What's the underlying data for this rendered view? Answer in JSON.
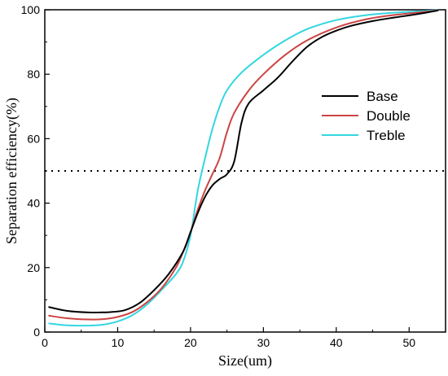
{
  "chart_data": {
    "type": "line",
    "xlabel": "Size(um)",
    "ylabel": "Separation efficiency(%)",
    "xlim": [
      0,
      55
    ],
    "ylim": [
      0,
      100
    ],
    "xticks": [
      0,
      10,
      20,
      30,
      40,
      50
    ],
    "yticks": [
      0,
      20,
      40,
      60,
      80,
      100
    ],
    "grid": false,
    "legend": "center-right",
    "series": [
      {
        "name": "Base",
        "color": "#000000",
        "points": [
          [
            0.5,
            7.8
          ],
          [
            3,
            6.6
          ],
          [
            6,
            6.1
          ],
          [
            9,
            6.2
          ],
          [
            11,
            6.8
          ],
          [
            13,
            9
          ],
          [
            15,
            13
          ],
          [
            17,
            18
          ],
          [
            19,
            25
          ],
          [
            20,
            31
          ],
          [
            21,
            37
          ],
          [
            22,
            42
          ],
          [
            23,
            45.5
          ],
          [
            24,
            47.5
          ],
          [
            25,
            49
          ],
          [
            26,
            53
          ],
          [
            27,
            65
          ],
          [
            28,
            71
          ],
          [
            30,
            75
          ],
          [
            32,
            79
          ],
          [
            34,
            84
          ],
          [
            36,
            88.5
          ],
          [
            38,
            91.5
          ],
          [
            40,
            93.5
          ],
          [
            42,
            95
          ],
          [
            45,
            96.5
          ],
          [
            48,
            97.6
          ],
          [
            51,
            98.6
          ],
          [
            54,
            99.8
          ]
        ]
      },
      {
        "name": "Double",
        "color": "#cc4444",
        "points": [
          [
            0.5,
            5.1
          ],
          [
            3,
            4.3
          ],
          [
            6,
            3.9
          ],
          [
            8,
            4
          ],
          [
            10,
            4.7
          ],
          [
            12,
            6.2
          ],
          [
            14,
            9.2
          ],
          [
            16,
            13.5
          ],
          [
            18,
            20
          ],
          [
            19,
            25
          ],
          [
            20,
            31
          ],
          [
            21,
            38
          ],
          [
            22,
            44
          ],
          [
            23,
            49
          ],
          [
            24,
            54
          ],
          [
            25,
            62
          ],
          [
            26,
            68
          ],
          [
            28,
            75
          ],
          [
            30,
            80
          ],
          [
            33,
            86
          ],
          [
            36,
            90.5
          ],
          [
            40,
            94.5
          ],
          [
            44,
            97
          ],
          [
            48,
            98.4
          ],
          [
            52,
            99.3
          ],
          [
            54,
            99.8
          ]
        ]
      },
      {
        "name": "Treble",
        "color": "#33d6e0",
        "points": [
          [
            0.5,
            2.7
          ],
          [
            3,
            2.1
          ],
          [
            6,
            2
          ],
          [
            8,
            2.3
          ],
          [
            10,
            3.3
          ],
          [
            12,
            5.2
          ],
          [
            14,
            8.5
          ],
          [
            16,
            13
          ],
          [
            18,
            18
          ],
          [
            19,
            22
          ],
          [
            20,
            30
          ],
          [
            21,
            44
          ],
          [
            22,
            54
          ],
          [
            23,
            63
          ],
          [
            24,
            70
          ],
          [
            25,
            75
          ],
          [
            27,
            80.5
          ],
          [
            30,
            86
          ],
          [
            33,
            90.5
          ],
          [
            36,
            94
          ],
          [
            40,
            96.8
          ],
          [
            44,
            98.3
          ],
          [
            48,
            99.1
          ],
          [
            52,
            99.6
          ],
          [
            54,
            99.9
          ]
        ]
      }
    ],
    "reference_line": {
      "y": 50,
      "style": "dotted"
    }
  }
}
